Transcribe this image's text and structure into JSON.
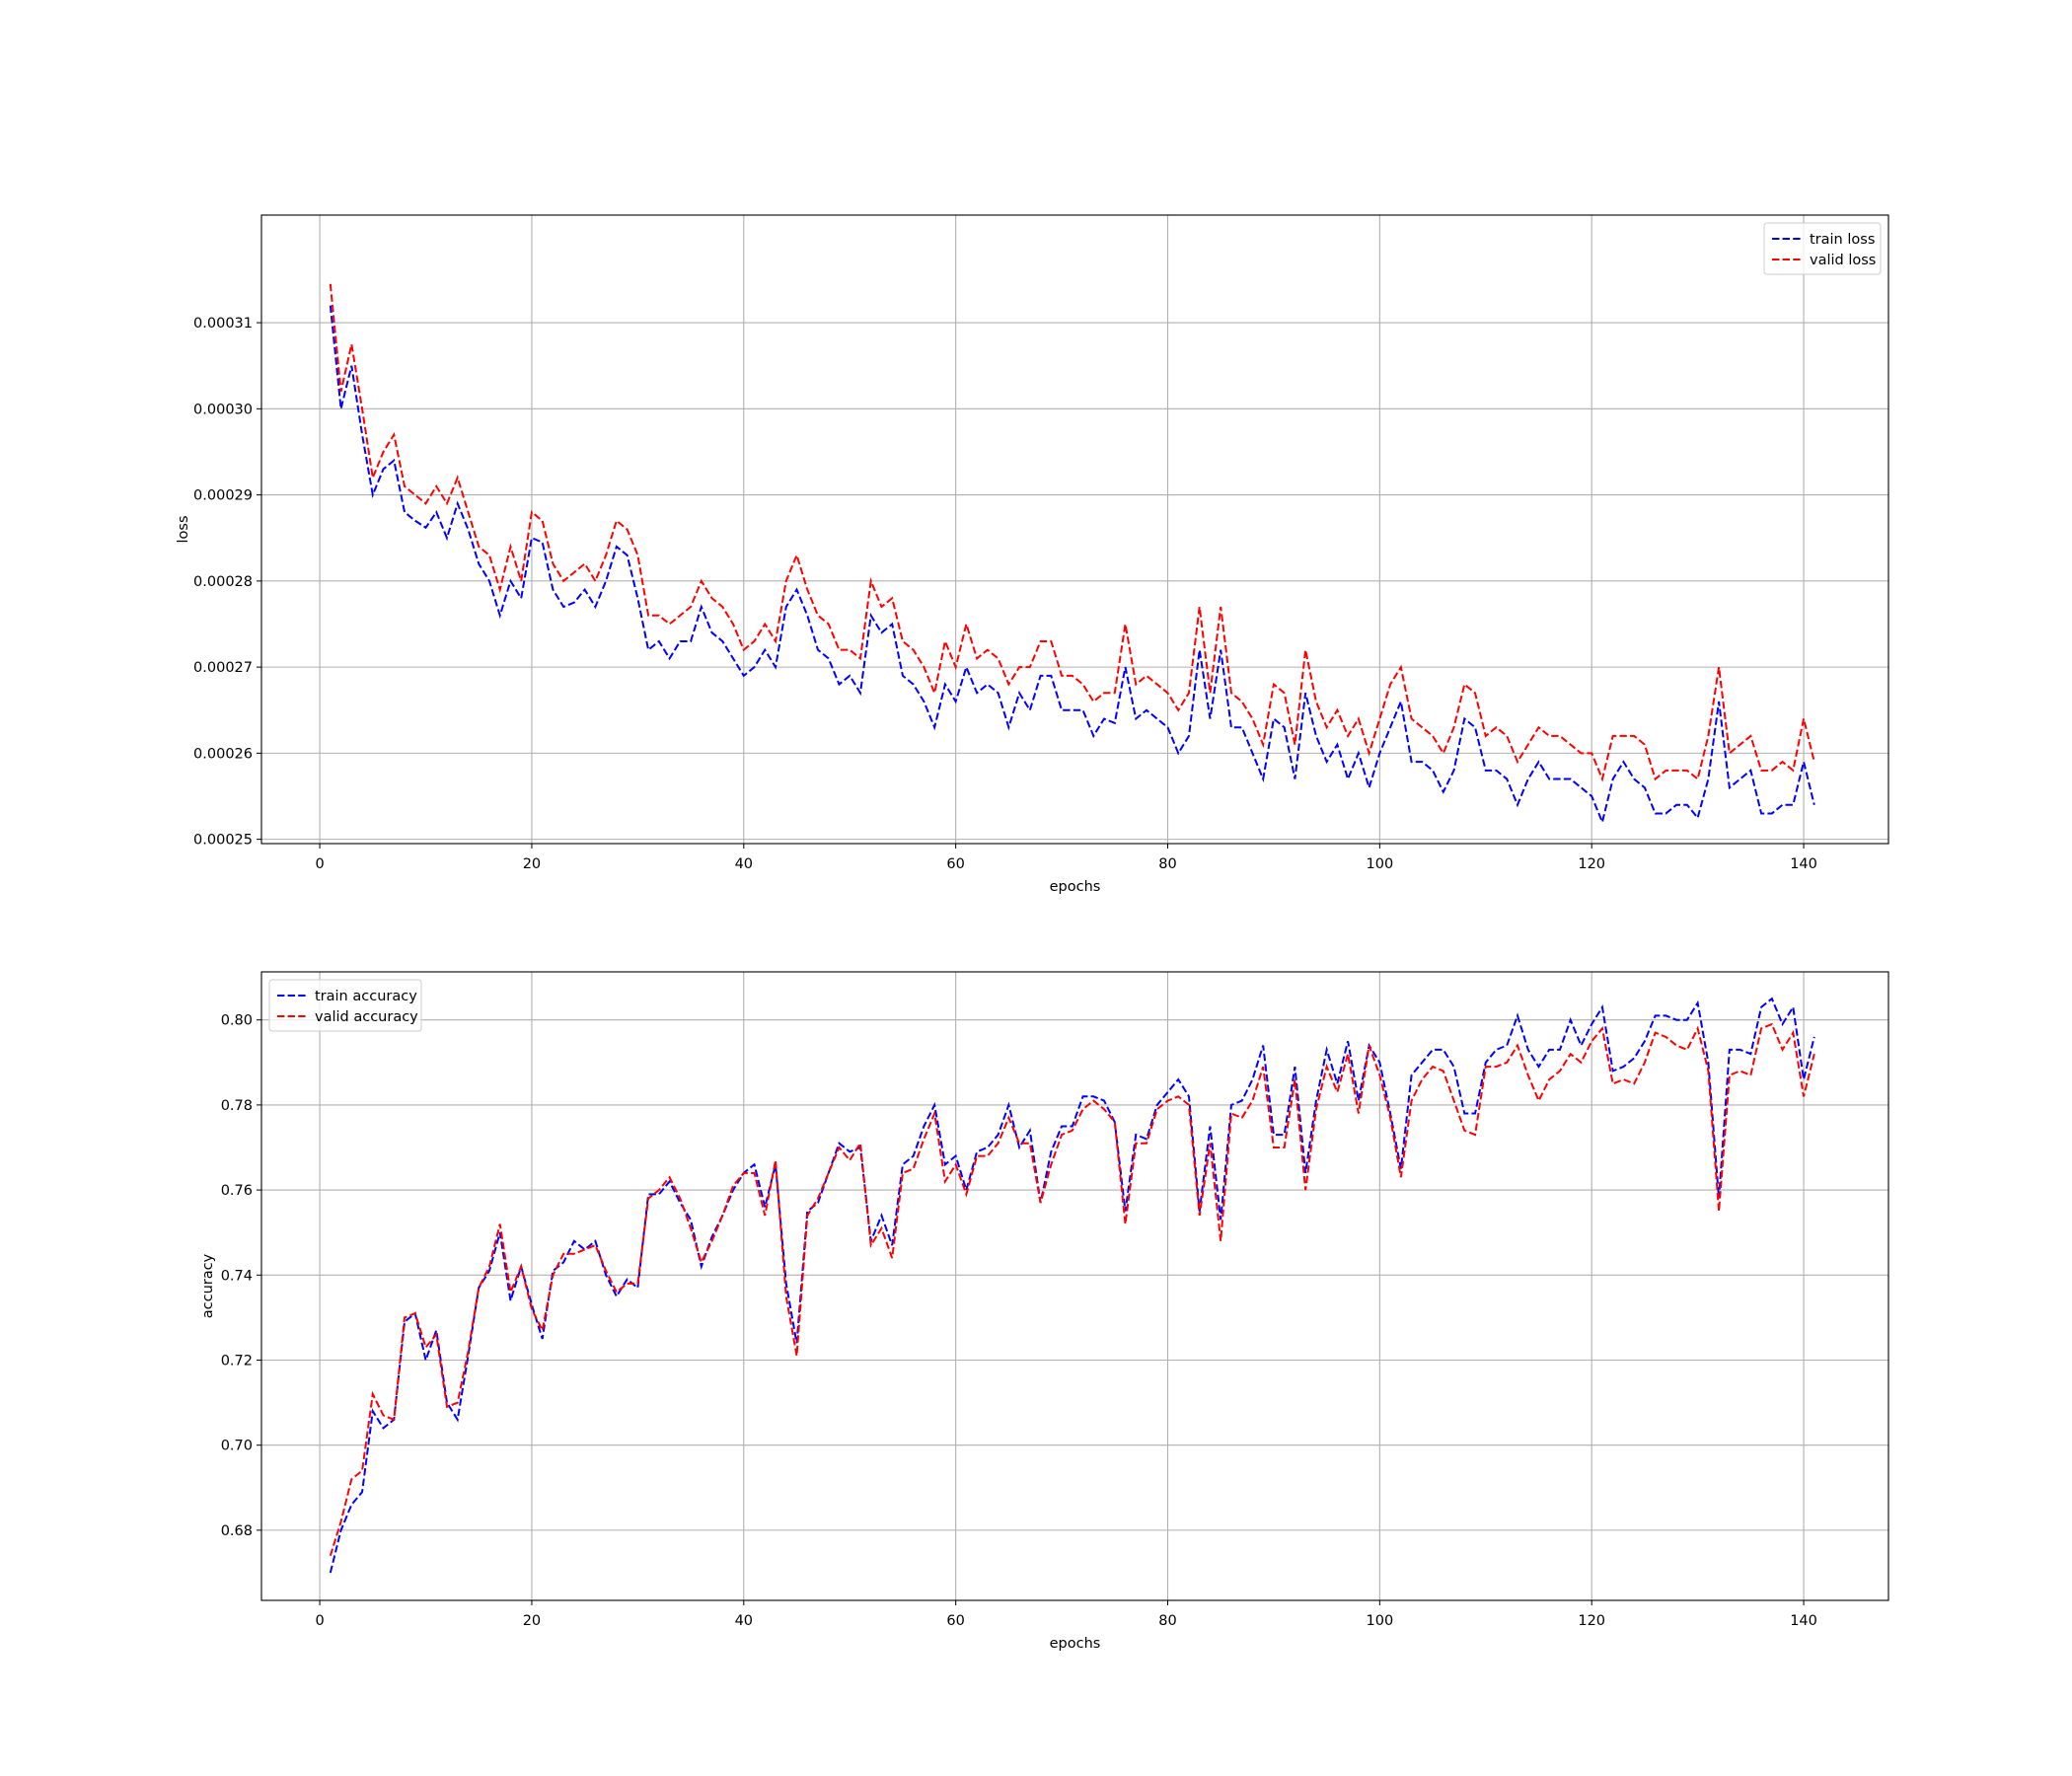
{
  "chart_data": [
    {
      "type": "line",
      "title": "",
      "xlabel": "epochs",
      "ylabel": "loss",
      "xlim": [
        -5.5,
        148
      ],
      "ylim": [
        0.0002495,
        0.0003225
      ],
      "xticks": [
        0,
        20,
        40,
        60,
        80,
        100,
        120,
        140
      ],
      "yticks": [
        0.00025,
        0.00026,
        0.00027,
        0.00028,
        0.00029,
        0.0003,
        0.00031
      ],
      "ytick_labels": [
        "0.00025",
        "0.00026",
        "0.00027",
        "0.00028",
        "0.00029",
        "0.00030",
        "0.00031"
      ],
      "grid": true,
      "legend_position": "top-right",
      "x": [
        1,
        2,
        3,
        4,
        5,
        6,
        7,
        8,
        9,
        10,
        11,
        12,
        13,
        14,
        15,
        16,
        17,
        18,
        19,
        20,
        21,
        22,
        23,
        24,
        25,
        26,
        27,
        28,
        29,
        30,
        31,
        32,
        33,
        34,
        35,
        36,
        37,
        38,
        39,
        40,
        41,
        42,
        43,
        44,
        45,
        46,
        47,
        48,
        49,
        50,
        51,
        52,
        53,
        54,
        55,
        56,
        57,
        58,
        59,
        60,
        61,
        62,
        63,
        64,
        65,
        66,
        67,
        68,
        69,
        70,
        71,
        72,
        73,
        74,
        75,
        76,
        77,
        78,
        79,
        80,
        81,
        82,
        83,
        84,
        85,
        86,
        87,
        88,
        89,
        90,
        91,
        92,
        93,
        94,
        95,
        96,
        97,
        98,
        99,
        100,
        101,
        102,
        103,
        104,
        105,
        106,
        107,
        108,
        109,
        110,
        111,
        112,
        113,
        114,
        115,
        116,
        117,
        118,
        119,
        120,
        121,
        122,
        123,
        124,
        125,
        126,
        127,
        128,
        129,
        130,
        131,
        132,
        133,
        134,
        135,
        136,
        137,
        138,
        139,
        140,
        141
      ],
      "series": [
        {
          "name": "train loss",
          "color": "#0000ff",
          "values": [
            0.000312,
            0.0003,
            0.000305,
            0.000297,
            0.00029,
            0.000293,
            0.000294,
            0.000288,
            0.000287,
            0.0002862,
            0.000288,
            0.000285,
            0.000289,
            0.000286,
            0.000282,
            0.00028,
            0.000276,
            0.00028,
            0.000278,
            0.000285,
            0.0002845,
            0.000279,
            0.000277,
            0.0002775,
            0.000279,
            0.000277,
            0.00028,
            0.000284,
            0.000283,
            0.000278,
            0.000272,
            0.000273,
            0.000271,
            0.000273,
            0.000273,
            0.000277,
            0.000274,
            0.000273,
            0.000271,
            0.000269,
            0.00027,
            0.000272,
            0.00027,
            0.000277,
            0.000279,
            0.000276,
            0.000272,
            0.000271,
            0.000268,
            0.000269,
            0.000267,
            0.000276,
            0.000274,
            0.000275,
            0.000269,
            0.000268,
            0.000266,
            0.000263,
            0.000268,
            0.000266,
            0.00027,
            0.000267,
            0.000268,
            0.000267,
            0.000263,
            0.000267,
            0.000265,
            0.000269,
            0.000269,
            0.000265,
            0.000265,
            0.000265,
            0.000262,
            0.000264,
            0.0002635,
            0.00027,
            0.000264,
            0.000265,
            0.000264,
            0.000263,
            0.00026,
            0.000262,
            0.000272,
            0.000264,
            0.000272,
            0.000263,
            0.000263,
            0.00026,
            0.000257,
            0.000264,
            0.000263,
            0.000257,
            0.000267,
            0.000262,
            0.000259,
            0.000261,
            0.000257,
            0.00026,
            0.000256,
            0.00026,
            0.000263,
            0.000266,
            0.000259,
            0.000259,
            0.000258,
            0.0002555,
            0.000258,
            0.000264,
            0.000263,
            0.000258,
            0.000258,
            0.000257,
            0.000254,
            0.000257,
            0.000259,
            0.000257,
            0.000257,
            0.000257,
            0.000256,
            0.000255,
            0.000252,
            0.000257,
            0.000259,
            0.000257,
            0.000256,
            0.000253,
            0.000253,
            0.000254,
            0.000254,
            0.0002525,
            0.000257,
            0.000266,
            0.000256,
            0.000257,
            0.000258,
            0.000253,
            0.000253,
            0.000254,
            0.000254,
            0.000259,
            0.000254
          ]
        },
        {
          "name": "valid loss",
          "color": "#ff0000",
          "values": [
            0.0003145,
            0.000302,
            0.0003075,
            0.0003,
            0.000292,
            0.000295,
            0.000297,
            0.000291,
            0.00029,
            0.000289,
            0.000291,
            0.000289,
            0.000292,
            0.000288,
            0.000284,
            0.000283,
            0.000279,
            0.000284,
            0.00028,
            0.000288,
            0.000287,
            0.000282,
            0.00028,
            0.000281,
            0.000282,
            0.00028,
            0.000283,
            0.000287,
            0.000286,
            0.000283,
            0.000276,
            0.000276,
            0.000275,
            0.000276,
            0.000277,
            0.00028,
            0.000278,
            0.000277,
            0.000275,
            0.000272,
            0.000273,
            0.000275,
            0.000273,
            0.00028,
            0.000283,
            0.000279,
            0.000276,
            0.000275,
            0.000272,
            0.000272,
            0.000271,
            0.00028,
            0.000277,
            0.000278,
            0.000273,
            0.000272,
            0.00027,
            0.000267,
            0.000273,
            0.00027,
            0.000275,
            0.000271,
            0.000272,
            0.000271,
            0.000268,
            0.00027,
            0.00027,
            0.000273,
            0.000273,
            0.000269,
            0.000269,
            0.000268,
            0.000266,
            0.000267,
            0.000267,
            0.000275,
            0.000268,
            0.000269,
            0.000268,
            0.000267,
            0.000265,
            0.000267,
            0.000277,
            0.000267,
            0.000277,
            0.000267,
            0.000266,
            0.000264,
            0.000261,
            0.000268,
            0.000267,
            0.000261,
            0.000272,
            0.000266,
            0.000263,
            0.000265,
            0.000262,
            0.000264,
            0.00026,
            0.000264,
            0.000268,
            0.00027,
            0.000264,
            0.000263,
            0.000262,
            0.00026,
            0.000263,
            0.000268,
            0.000267,
            0.000262,
            0.000263,
            0.000262,
            0.000259,
            0.000261,
            0.000263,
            0.000262,
            0.000262,
            0.000261,
            0.00026,
            0.00026,
            0.000257,
            0.000262,
            0.000262,
            0.000262,
            0.000261,
            0.000257,
            0.000258,
            0.000258,
            0.000258,
            0.000257,
            0.000262,
            0.00027,
            0.00026,
            0.000261,
            0.000262,
            0.000258,
            0.000258,
            0.000259,
            0.000258,
            0.000264,
            0.000259
          ]
        }
      ]
    },
    {
      "type": "line",
      "title": "",
      "xlabel": "epochs",
      "ylabel": "accuracy",
      "xlim": [
        -5.5,
        148
      ],
      "ylim": [
        0.6635,
        0.8113
      ],
      "xticks": [
        0,
        20,
        40,
        60,
        80,
        100,
        120,
        140
      ],
      "yticks": [
        0.68,
        0.7,
        0.72,
        0.74,
        0.76,
        0.78,
        0.8
      ],
      "ytick_labels": [
        "0.68",
        "0.70",
        "0.72",
        "0.74",
        "0.76",
        "0.78",
        "0.80"
      ],
      "grid": true,
      "legend_position": "top-left",
      "x": [
        1,
        2,
        3,
        4,
        5,
        6,
        7,
        8,
        9,
        10,
        11,
        12,
        13,
        14,
        15,
        16,
        17,
        18,
        19,
        20,
        21,
        22,
        23,
        24,
        25,
        26,
        27,
        28,
        29,
        30,
        31,
        32,
        33,
        34,
        35,
        36,
        37,
        38,
        39,
        40,
        41,
        42,
        43,
        44,
        45,
        46,
        47,
        48,
        49,
        50,
        51,
        52,
        53,
        54,
        55,
        56,
        57,
        58,
        59,
        60,
        61,
        62,
        63,
        64,
        65,
        66,
        67,
        68,
        69,
        70,
        71,
        72,
        73,
        74,
        75,
        76,
        77,
        78,
        79,
        80,
        81,
        82,
        83,
        84,
        85,
        86,
        87,
        88,
        89,
        90,
        91,
        92,
        93,
        94,
        95,
        96,
        97,
        98,
        99,
        100,
        101,
        102,
        103,
        104,
        105,
        106,
        107,
        108,
        109,
        110,
        111,
        112,
        113,
        114,
        115,
        116,
        117,
        118,
        119,
        120,
        121,
        122,
        123,
        124,
        125,
        126,
        127,
        128,
        129,
        130,
        131,
        132,
        133,
        134,
        135,
        136,
        137,
        138,
        139,
        140,
        141
      ],
      "series": [
        {
          "name": "train accuracy",
          "color": "#0000ff",
          "values": [
            0.67,
            0.68,
            0.686,
            0.689,
            0.708,
            0.704,
            0.706,
            0.729,
            0.731,
            0.72,
            0.727,
            0.71,
            0.706,
            0.721,
            0.737,
            0.741,
            0.75,
            0.734,
            0.742,
            0.733,
            0.725,
            0.741,
            0.743,
            0.748,
            0.746,
            0.748,
            0.74,
            0.735,
            0.739,
            0.737,
            0.759,
            0.759,
            0.762,
            0.757,
            0.753,
            0.742,
            0.749,
            0.754,
            0.76,
            0.764,
            0.766,
            0.756,
            0.766,
            0.738,
            0.724,
            0.755,
            0.757,
            0.764,
            0.771,
            0.769,
            0.77,
            0.748,
            0.754,
            0.747,
            0.766,
            0.768,
            0.775,
            0.78,
            0.766,
            0.768,
            0.76,
            0.769,
            0.77,
            0.773,
            0.78,
            0.77,
            0.774,
            0.757,
            0.769,
            0.775,
            0.775,
            0.782,
            0.782,
            0.781,
            0.776,
            0.755,
            0.773,
            0.772,
            0.78,
            0.783,
            0.786,
            0.782,
            0.755,
            0.775,
            0.753,
            0.78,
            0.781,
            0.786,
            0.794,
            0.773,
            0.773,
            0.789,
            0.764,
            0.781,
            0.793,
            0.785,
            0.795,
            0.781,
            0.794,
            0.79,
            0.778,
            0.765,
            0.787,
            0.79,
            0.793,
            0.793,
            0.789,
            0.778,
            0.778,
            0.79,
            0.793,
            0.794,
            0.801,
            0.793,
            0.789,
            0.793,
            0.793,
            0.8,
            0.794,
            0.799,
            0.803,
            0.788,
            0.789,
            0.791,
            0.795,
            0.801,
            0.801,
            0.8,
            0.8,
            0.804,
            0.79,
            0.758,
            0.793,
            0.793,
            0.792,
            0.803,
            0.805,
            0.799,
            0.803,
            0.786,
            0.796
          ]
        },
        {
          "name": "valid accuracy",
          "color": "#ff0000",
          "values": [
            0.674,
            0.682,
            0.692,
            0.694,
            0.712,
            0.707,
            0.706,
            0.73,
            0.731,
            0.723,
            0.726,
            0.709,
            0.71,
            0.722,
            0.737,
            0.742,
            0.752,
            0.736,
            0.742,
            0.732,
            0.727,
            0.74,
            0.745,
            0.745,
            0.746,
            0.747,
            0.741,
            0.736,
            0.738,
            0.738,
            0.758,
            0.76,
            0.763,
            0.758,
            0.751,
            0.743,
            0.748,
            0.754,
            0.761,
            0.764,
            0.764,
            0.754,
            0.767,
            0.735,
            0.721,
            0.754,
            0.758,
            0.764,
            0.77,
            0.767,
            0.771,
            0.747,
            0.751,
            0.744,
            0.764,
            0.765,
            0.772,
            0.778,
            0.762,
            0.766,
            0.759,
            0.768,
            0.768,
            0.771,
            0.777,
            0.771,
            0.771,
            0.757,
            0.766,
            0.773,
            0.774,
            0.779,
            0.781,
            0.779,
            0.776,
            0.752,
            0.771,
            0.771,
            0.779,
            0.781,
            0.782,
            0.78,
            0.754,
            0.771,
            0.748,
            0.778,
            0.777,
            0.781,
            0.789,
            0.77,
            0.77,
            0.786,
            0.76,
            0.779,
            0.789,
            0.783,
            0.792,
            0.778,
            0.794,
            0.787,
            0.777,
            0.763,
            0.781,
            0.786,
            0.789,
            0.788,
            0.781,
            0.774,
            0.773,
            0.789,
            0.789,
            0.79,
            0.794,
            0.787,
            0.781,
            0.786,
            0.788,
            0.792,
            0.79,
            0.795,
            0.798,
            0.785,
            0.786,
            0.785,
            0.79,
            0.797,
            0.796,
            0.794,
            0.793,
            0.798,
            0.788,
            0.755,
            0.787,
            0.788,
            0.787,
            0.798,
            0.799,
            0.793,
            0.797,
            0.782,
            0.792
          ]
        }
      ]
    }
  ]
}
